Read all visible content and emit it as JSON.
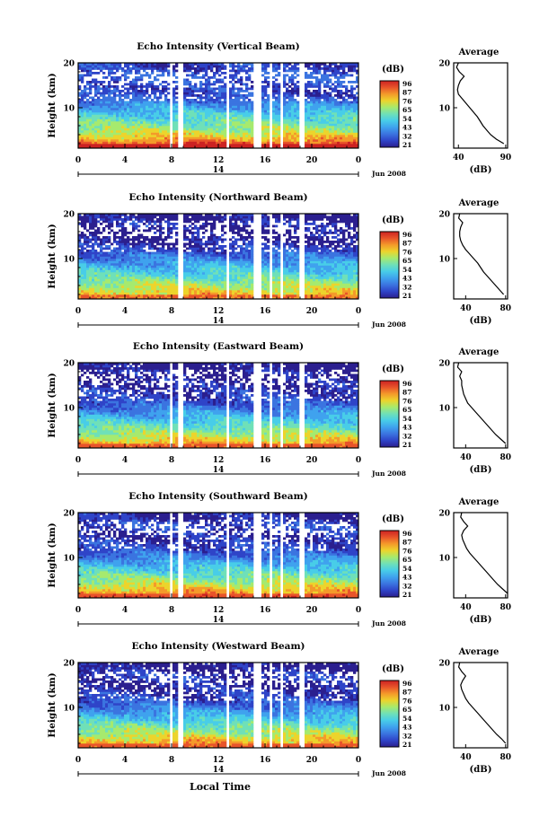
{
  "colors": {
    "scale": [
      "#2b1f8f",
      "#2f44c8",
      "#3b74e0",
      "#3fa2ee",
      "#48cde8",
      "#6fe0b8",
      "#a6ea6e",
      "#ecd42c",
      "#f49a2a",
      "#e8542a",
      "#cc2222"
    ]
  },
  "charts_meta": {
    "x_ticks": [
      "0",
      "4",
      "8",
      "12",
      "16",
      "20",
      "0"
    ],
    "y_ticks": [
      "20",
      "10"
    ],
    "ylabel": "Height (km)",
    "day_label": "14",
    "month_label": "Jun 2008",
    "xlabel": "Local Time",
    "colorbar_unit": "(dB)",
    "colorbar_ticks": [
      "96",
      "87",
      "76",
      "65",
      "54",
      "43",
      "32",
      "21"
    ],
    "avg_title": "Average",
    "avg_unit": "(dB)"
  },
  "chart_data": [
    {
      "type": "heatmap",
      "title": "Echo Intensity (Vertical Beam)",
      "x_range": [
        0,
        24
      ],
      "y_range": [
        1,
        20
      ],
      "z_range": [
        21,
        96
      ],
      "gaps_hours": [
        [
          7.8,
          8.1
        ],
        [
          8.6,
          8.9
        ],
        [
          12.7,
          13.0
        ],
        [
          15.1,
          15.8
        ],
        [
          16.3,
          16.6
        ],
        [
          17.2,
          17.5
        ],
        [
          19.0,
          19.3
        ]
      ],
      "average_profile": {
        "x_ticks": [
          "40",
          "90"
        ],
        "x_range": [
          35,
          92
        ],
        "y_ticks": [
          "20",
          "10"
        ],
        "heights_km": [
          2,
          3,
          4,
          5,
          6,
          7,
          8,
          9,
          10,
          11,
          12,
          13,
          14,
          15,
          16,
          17,
          18,
          19,
          20
        ],
        "values_db": [
          88,
          80,
          74,
          70,
          66,
          63,
          60,
          56,
          52,
          48,
          44,
          40,
          39,
          40,
          42,
          46,
          41,
          38,
          40
        ]
      }
    },
    {
      "type": "heatmap",
      "title": "Echo Intensity (Northward Beam)",
      "x_range": [
        0,
        24
      ],
      "y_range": [
        1,
        20
      ],
      "z_range": [
        21,
        96
      ],
      "gaps_hours": [
        [
          8.6,
          8.9
        ],
        [
          12.7,
          13.0
        ],
        [
          15.1,
          15.8
        ],
        [
          16.3,
          16.6
        ],
        [
          17.2,
          17.5
        ],
        [
          19.0,
          19.3
        ]
      ],
      "average_profile": {
        "x_ticks": [
          "40",
          "80"
        ],
        "x_range": [
          28,
          82
        ],
        "y_ticks": [
          "20",
          "10"
        ],
        "heights_km": [
          2,
          3,
          4,
          5,
          6,
          7,
          8,
          9,
          10,
          11,
          12,
          13,
          14,
          15,
          16,
          17,
          18,
          19,
          20
        ],
        "values_db": [
          78,
          74,
          70,
          66,
          62,
          58,
          55,
          52,
          48,
          44,
          40,
          37,
          35,
          34,
          34,
          35,
          37,
          33,
          34
        ]
      }
    },
    {
      "type": "heatmap",
      "title": "Echo Intensity (Eastward Beam)",
      "x_range": [
        0,
        24
      ],
      "y_range": [
        1,
        20
      ],
      "z_range": [
        21,
        96
      ],
      "gaps_hours": [
        [
          7.8,
          8.1
        ],
        [
          8.6,
          8.9
        ],
        [
          12.7,
          13.0
        ],
        [
          15.1,
          15.8
        ],
        [
          16.3,
          16.6
        ],
        [
          17.2,
          17.5
        ],
        [
          19.0,
          19.3
        ]
      ],
      "average_profile": {
        "x_ticks": [
          "40",
          "80"
        ],
        "x_range": [
          28,
          82
        ],
        "y_ticks": [
          "20",
          "10"
        ],
        "heights_km": [
          2,
          3,
          4,
          5,
          6,
          7,
          8,
          9,
          10,
          11,
          12,
          13,
          14,
          15,
          16,
          17,
          18,
          19,
          20
        ],
        "values_db": [
          80,
          75,
          70,
          66,
          62,
          58,
          54,
          50,
          46,
          42,
          40,
          38,
          37,
          36,
          36,
          34,
          36,
          32,
          33
        ]
      }
    },
    {
      "type": "heatmap",
      "title": "Echo Intensity (Southward Beam)",
      "x_range": [
        0,
        24
      ],
      "y_range": [
        1,
        20
      ],
      "z_range": [
        21,
        96
      ],
      "gaps_hours": [
        [
          7.8,
          8.1
        ],
        [
          8.6,
          8.9
        ],
        [
          12.7,
          13.0
        ],
        [
          15.1,
          15.8
        ],
        [
          16.3,
          16.6
        ],
        [
          17.2,
          17.5
        ],
        [
          19.0,
          19.3
        ]
      ],
      "average_profile": {
        "x_ticks": [
          "40",
          "80"
        ],
        "x_range": [
          28,
          82
        ],
        "y_ticks": [
          "20",
          "10"
        ],
        "heights_km": [
          2,
          3,
          4,
          5,
          6,
          7,
          8,
          9,
          10,
          11,
          12,
          13,
          14,
          15,
          16,
          17,
          18,
          19,
          20
        ],
        "values_db": [
          82,
          77,
          72,
          68,
          64,
          60,
          56,
          52,
          48,
          44,
          41,
          39,
          37,
          36,
          38,
          42,
          38,
          35,
          36
        ]
      }
    },
    {
      "type": "heatmap",
      "title": "Echo Intensity (Westward Beam)",
      "x_range": [
        0,
        24
      ],
      "y_range": [
        1,
        20
      ],
      "z_range": [
        21,
        96
      ],
      "gaps_hours": [
        [
          7.8,
          8.1
        ],
        [
          8.6,
          8.9
        ],
        [
          12.7,
          13.0
        ],
        [
          15.1,
          15.8
        ],
        [
          16.3,
          16.6
        ],
        [
          17.2,
          17.5
        ],
        [
          19.0,
          19.3
        ]
      ],
      "average_profile": {
        "x_ticks": [
          "40",
          "80"
        ],
        "x_range": [
          28,
          82
        ],
        "y_ticks": [
          "20",
          "10"
        ],
        "heights_km": [
          2,
          3,
          4,
          5,
          6,
          7,
          8,
          9,
          10,
          11,
          12,
          13,
          14,
          15,
          16,
          17,
          18,
          19,
          20
        ],
        "values_db": [
          80,
          76,
          71,
          67,
          63,
          59,
          55,
          51,
          47,
          43,
          40,
          38,
          36,
          35,
          37,
          40,
          36,
          33,
          34
        ]
      }
    }
  ]
}
